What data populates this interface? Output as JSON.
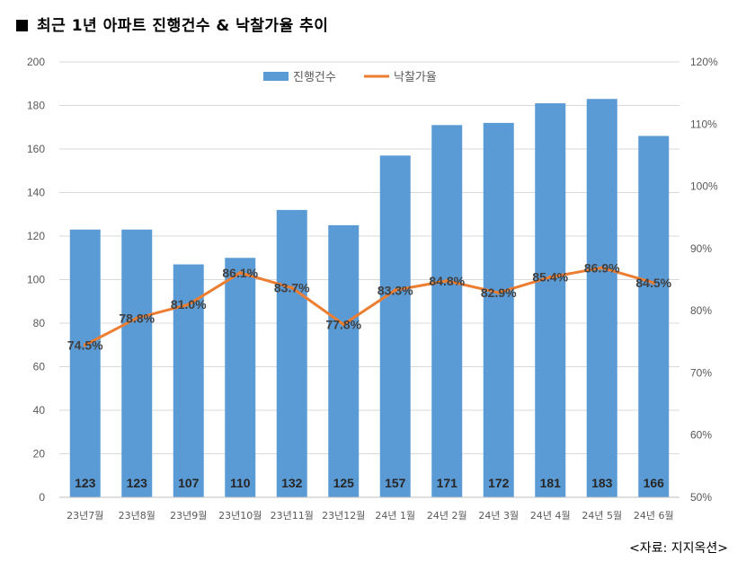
{
  "title": "최근 1년 아파트 진행건수 & 낙찰가율 추이",
  "source": "<자료: 지지옥션>",
  "colors": {
    "bar": "#5B9BD5",
    "line": "#ED7D31",
    "grid": "#D9D9D9"
  },
  "chart_data": {
    "type": "bar+line",
    "title": "최근 1년 아파트 진행건수 & 낙찰가율 추이",
    "categories": [
      "23년7월",
      "23년8월",
      "23년9월",
      "23년10월",
      "23년11월",
      "23년12월",
      "24년 1월",
      "24년 2월",
      "24년 3월",
      "24년 4월",
      "24년 5월",
      "24년 6월"
    ],
    "series": [
      {
        "name": "진행건수",
        "type": "bar",
        "axis": "left",
        "values": [
          123,
          123,
          107,
          110,
          132,
          125,
          157,
          171,
          172,
          181,
          183,
          166
        ],
        "labels": [
          "123",
          "123",
          "107",
          "110",
          "132",
          "125",
          "157",
          "171",
          "172",
          "181",
          "183",
          "166"
        ]
      },
      {
        "name": "낙찰가율",
        "type": "line",
        "axis": "right",
        "values": [
          74.5,
          78.8,
          81.0,
          86.1,
          83.7,
          77.8,
          83.3,
          84.8,
          82.9,
          85.4,
          86.9,
          84.5
        ],
        "labels": [
          "74.5%",
          "78.8%",
          "81.0%",
          "86.1%",
          "83.7%",
          "77.8%",
          "83.3%",
          "84.8%",
          "82.9%",
          "85.4%",
          "86.9%",
          "84.5%"
        ]
      }
    ],
    "ylim_left": [
      0,
      200
    ],
    "yticks_left": [
      "0",
      "20",
      "40",
      "60",
      "80",
      "100",
      "120",
      "140",
      "160",
      "180",
      "200"
    ],
    "ylim_right": [
      50,
      120
    ],
    "yticks_right": [
      "50%",
      "60%",
      "70%",
      "80%",
      "90%",
      "100%",
      "110%",
      "120%"
    ],
    "grid": true,
    "legend": "top-center"
  }
}
